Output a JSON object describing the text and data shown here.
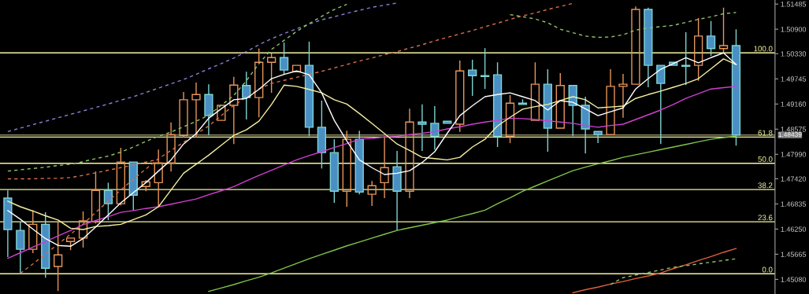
{
  "chart_data": {
    "type": "candlestick",
    "tick_labels": "y",
    "grid": false,
    "legend": false,
    "categories": [
      null,
      null,
      null,
      null,
      null,
      null,
      null,
      null,
      null,
      null,
      null,
      null,
      null,
      null,
      null,
      null,
      null,
      null,
      null,
      null,
      null,
      null,
      null,
      null,
      null,
      null,
      null,
      null,
      null,
      null,
      null,
      null,
      null,
      null,
      null,
      null,
      null,
      null,
      null,
      null,
      null,
      null,
      null,
      null,
      null,
      null,
      null,
      null,
      null,
      null,
      null,
      null,
      null,
      null,
      null,
      null,
      null,
      null,
      null
    ],
    "ylim": [
      1.4474,
      1.5158
    ],
    "yticks": [
      {
        "value": 1.51485,
        "label": "1.51485"
      },
      {
        "value": 1.509,
        "label": "1.50900"
      },
      {
        "value": 1.5033,
        "label": "1.50330"
      },
      {
        "value": 1.49745,
        "label": "1.49745"
      },
      {
        "value": 1.4916,
        "label": "1.49160"
      },
      {
        "value": 1.48575,
        "label": "1.48575"
      },
      {
        "value": 1.4799,
        "label": "1.47990"
      },
      {
        "value": 1.4742,
        "label": "1.47420"
      },
      {
        "value": 1.46835,
        "label": "1.46835"
      },
      {
        "value": 1.4625,
        "label": "1.46250"
      },
      {
        "value": 1.45665,
        "label": "1.45665"
      },
      {
        "value": 1.4508,
        "label": "1.45080"
      }
    ],
    "ref_lines": [
      {
        "axis": "y",
        "value": 1.48439,
        "label": "1.48439",
        "color": "#8a8a6a"
      },
      {
        "axis": "y",
        "value": 1.5035,
        "color": "#f5f5a0"
      },
      {
        "axis": "y",
        "value": 1.4839,
        "color": "#f5f5a0"
      },
      {
        "axis": "y",
        "value": 1.4778,
        "color": "#f5f5a0"
      },
      {
        "axis": "y",
        "value": 1.4717,
        "color": "#f5f5a0"
      },
      {
        "axis": "y",
        "value": 1.4642,
        "color": "#f5f5a0"
      },
      {
        "axis": "y",
        "value": 1.4521,
        "color": "#f5f5a0"
      }
    ],
    "annotations": [
      {
        "text": "100.0",
        "y": 1.5035
      },
      {
        "text": "61.8",
        "y": 1.4839
      },
      {
        "text": "50.0",
        "y": 1.4778
      },
      {
        "text": "38.2",
        "y": 1.4717
      },
      {
        "text": "23.6",
        "y": 1.4642
      },
      {
        "text": "0.0",
        "y": 1.4521
      }
    ],
    "colors": [
      "#4a8fc4",
      "#4a8fc4",
      "#e8955a",
      "#4a8fc4",
      "#e8955a",
      "#e8955a",
      "#e8955a",
      "#e8955a",
      "#4a8fc4",
      "#e8955a",
      "#4a8fc4",
      "#e8955a",
      "#e8955a",
      "#e8955a",
      "#e8955a",
      "#e8955a",
      "#4a8fc4",
      "#e8955a",
      "#e8955a",
      "#4a8fc4",
      "#e8955a",
      "#e8955a",
      "#4a8fc4",
      "#e8955a",
      "#4a8fc4",
      "#4a8fc4",
      "#4a8fc4",
      "#e8955a",
      "#4a8fc4",
      "#e8955a",
      "#e8955a",
      "#4a8fc4",
      "#e8955a",
      "#4a8fc4",
      "#4a8fc4",
      "#4a8fc4",
      "#e8955a",
      "#4a8fc4",
      "#4a8fc4",
      "#4a8fc4",
      "#e8955a",
      "#4a8fc4",
      "#e8955a",
      "#4a8fc4",
      "#e8955a",
      "#4a8fc4",
      "#4a8fc4",
      "#4a8fc4",
      "#e8955a",
      "#e8955a",
      "#e8955a",
      "#4a8fc4",
      "#4a8fc4",
      "#4a8fc4",
      "#4a8fc4",
      "#e8955a",
      "#4a8fc4",
      "#e8955a",
      "#4a8fc4"
    ],
    "ohlc": [
      [
        1.4697,
        1.4715,
        1.456,
        1.4624
      ],
      [
        1.4622,
        1.4642,
        1.4521,
        1.4578
      ],
      [
        1.4578,
        1.4669,
        1.4569,
        1.4636
      ],
      [
        1.4636,
        1.4664,
        1.4512,
        1.4534
      ],
      [
        1.4538,
        1.4642,
        1.4481,
        1.4565
      ],
      [
        1.4596,
        1.4604,
        1.4576,
        1.4604
      ],
      [
        1.4604,
        1.4666,
        1.4582,
        1.4644
      ],
      [
        1.4642,
        1.4759,
        1.4638,
        1.4715
      ],
      [
        1.4715,
        1.4733,
        1.4646,
        1.4684
      ],
      [
        1.4684,
        1.4814,
        1.468,
        1.4781
      ],
      [
        1.4781,
        1.4781,
        1.4668,
        1.4704
      ],
      [
        1.4724,
        1.4739,
        1.4713,
        1.4735
      ],
      [
        1.4733,
        1.481,
        1.4677,
        1.4779
      ],
      [
        1.4779,
        1.4873,
        1.4759,
        1.4845
      ],
      [
        1.4843,
        1.4944,
        1.4838,
        1.4926
      ],
      [
        1.4926,
        1.4966,
        1.4838,
        1.4938
      ],
      [
        1.4938,
        1.4962,
        1.4843,
        1.4889
      ],
      [
        1.4878,
        1.4913,
        1.4878,
        1.4913
      ],
      [
        1.4913,
        1.4979,
        1.4823,
        1.496
      ],
      [
        1.4959,
        1.4991,
        1.488,
        1.4931
      ],
      [
        1.4931,
        1.5045,
        1.4885,
        1.5013
      ],
      [
        1.5013,
        1.5034,
        1.4942,
        1.5024
      ],
      [
        1.5024,
        1.5059,
        1.4984,
        1.4995
      ],
      [
        1.4991,
        1.5006,
        1.4991,
        1.5006
      ],
      [
        1.5006,
        1.5061,
        1.4841,
        1.4862
      ],
      [
        1.4862,
        1.4924,
        1.4766,
        1.4803
      ],
      [
        1.4803,
        1.4834,
        1.4686,
        1.4713
      ],
      [
        1.4713,
        1.4854,
        1.4677,
        1.4834
      ],
      [
        1.4834,
        1.4854,
        1.4706,
        1.4711
      ],
      [
        1.4706,
        1.4737,
        1.4679,
        1.4726
      ],
      [
        1.4733,
        1.4841,
        1.4697,
        1.4768
      ],
      [
        1.477,
        1.4807,
        1.4622,
        1.4713
      ],
      [
        1.4713,
        1.4905,
        1.4697,
        1.4874
      ],
      [
        1.4874,
        1.4915,
        1.4807,
        1.4869
      ],
      [
        1.4871,
        1.4911,
        1.481,
        1.4841
      ],
      [
        1.4876,
        1.4876,
        1.4871,
        1.4871
      ],
      [
        1.4869,
        1.5017,
        1.4851,
        1.4993
      ],
      [
        1.4995,
        1.5019,
        1.4935,
        1.4982
      ],
      [
        1.4982,
        1.5046,
        1.4951,
        1.498
      ],
      [
        1.4984,
        1.5013,
        1.4816,
        1.4841
      ],
      [
        1.4841,
        1.4937,
        1.4825,
        1.4918
      ],
      [
        1.4918,
        1.4927,
        1.4915,
        1.4915
      ],
      [
        1.4878,
        1.5013,
        1.4878,
        1.4962
      ],
      [
        1.4962,
        1.4997,
        1.4805,
        1.486
      ],
      [
        1.486,
        1.4988,
        1.486,
        1.4959
      ],
      [
        1.4959,
        1.4959,
        1.4841,
        1.4913
      ],
      [
        1.4913,
        1.4933,
        1.4801,
        1.4858
      ],
      [
        1.4852,
        1.4852,
        1.4825,
        1.4845
      ],
      [
        1.4845,
        1.4997,
        1.4845,
        1.4957
      ],
      [
        1.4957,
        1.4986,
        1.4884,
        1.4962
      ],
      [
        1.4962,
        1.5143,
        1.4962,
        1.5136
      ],
      [
        1.5136,
        1.514,
        1.4955,
        1.5006
      ],
      [
        1.5006,
        1.5006,
        1.4823,
        1.4964
      ],
      [
        1.5013,
        1.5013,
        1.5006,
        1.5006
      ],
      [
        1.5006,
        1.5083,
        1.496,
        1.5004
      ],
      [
        1.5006,
        1.5116,
        1.497,
        1.5074
      ],
      [
        1.5074,
        1.5109,
        1.5028,
        1.5045
      ],
      [
        1.5045,
        1.514,
        1.5035,
        1.5052
      ],
      [
        1.5052,
        1.509,
        1.4819,
        1.48439
      ]
    ],
    "series": [
      {
        "type": "line",
        "color": "#8a7fd8",
        "line_style": "dashed",
        "values": [
          1.4852,
          1.486,
          1.4868,
          1.4876,
          1.4884,
          1.4892,
          1.49,
          1.4908,
          1.4916,
          1.4925,
          1.4933,
          1.4943,
          1.4953,
          1.4963,
          1.4973,
          1.4985,
          1.4998,
          1.501,
          1.5023,
          1.5038,
          1.5054,
          1.5068,
          1.508,
          1.5091,
          1.5102,
          1.5112,
          1.5119,
          1.5127,
          1.5134,
          1.5141,
          1.5146,
          1.5151,
          null,
          null,
          null,
          null,
          null,
          null,
          null,
          null,
          null,
          null,
          null,
          null,
          null,
          null,
          null,
          null,
          null,
          null,
          null,
          null,
          null,
          null,
          null,
          null,
          null,
          null,
          null
        ]
      },
      {
        "type": "line",
        "color": "#8fc46a",
        "line_style": "dashed",
        "values": [
          1.476,
          1.4763,
          1.4766,
          1.4769,
          1.4773,
          1.4776,
          1.4782,
          1.4789,
          1.4795,
          1.4804,
          1.4816,
          1.4829,
          1.4841,
          1.4851,
          1.4863,
          1.4876,
          1.489,
          1.4913,
          1.4936,
          1.497,
          1.501,
          1.5043,
          1.5064,
          1.5085,
          1.5103,
          1.512,
          1.5136,
          1.5148,
          null,
          null,
          null,
          null,
          null,
          null,
          null,
          null,
          null,
          null,
          null,
          null,
          1.5124,
          1.5119,
          1.5114,
          1.5105,
          1.509,
          1.5082,
          1.5074,
          1.5071,
          1.5072,
          1.5077,
          1.5088,
          1.5093,
          1.5096,
          1.5099,
          1.5106,
          1.5113,
          1.5119,
          1.5126,
          1.5129
        ]
      },
      {
        "type": "line",
        "color": "#d8704a",
        "line_style": "dashed",
        "values": [
          1.4742,
          1.4742,
          1.4742,
          1.4743,
          1.4743,
          1.4745,
          1.475,
          1.4756,
          1.4762,
          1.4768,
          1.4774,
          1.4781,
          1.4787,
          null,
          null,
          null,
          null,
          null,
          null,
          null,
          null,
          null,
          null,
          null,
          null,
          null,
          null,
          null,
          null,
          null,
          null,
          null,
          null,
          null,
          null,
          null,
          null,
          null,
          null,
          null,
          null,
          null,
          null,
          null,
          null,
          null,
          null,
          null,
          null,
          null,
          null,
          null,
          null,
          null,
          null,
          null,
          null,
          null,
          null
        ]
      },
      {
        "type": "line",
        "color": "#d8704a",
        "line_style": "dashed",
        "values": [
          null,
          1.4522,
          1.4544,
          1.4567,
          1.459,
          1.4613,
          1.4637,
          1.4664,
          1.469,
          1.4716,
          1.4741,
          1.4765,
          1.4789,
          1.4808,
          1.4827,
          1.4846,
          1.4865,
          1.4889,
          1.4913,
          1.4932,
          1.4951,
          1.4964,
          1.4971,
          1.4978,
          1.4985,
          1.4992,
          1.5,
          1.5008,
          1.5016,
          1.5023,
          1.5031,
          1.5038,
          1.5046,
          1.5054,
          1.5063,
          1.5071,
          1.5079,
          1.5087,
          1.5096,
          1.5104,
          1.5113,
          1.5121,
          1.5128,
          1.5136,
          1.5143,
          1.515,
          null,
          null,
          null,
          null,
          null,
          null,
          null,
          null,
          null,
          null,
          null,
          null,
          null
        ]
      },
      {
        "type": "line",
        "color": "#7fc44a",
        "line_style": "solid",
        "values": [
          null,
          null,
          null,
          null,
          null,
          null,
          null,
          null,
          null,
          null,
          null,
          null,
          null,
          null,
          null,
          null,
          1.448,
          1.4488,
          1.4496,
          1.4505,
          1.4513,
          1.4523,
          1.4534,
          1.4545,
          1.4556,
          1.4566,
          1.4576,
          1.4586,
          1.4595,
          1.4604,
          1.4613,
          1.4622,
          1.4628,
          1.4634,
          1.464,
          1.4646,
          1.4654,
          1.4661,
          1.4669,
          1.4684,
          1.4698,
          1.4713,
          1.4725,
          1.4737,
          1.4749,
          1.4761,
          1.4769,
          1.4777,
          1.4784,
          1.4792,
          1.4798,
          1.4804,
          1.481,
          1.4816,
          1.4822,
          1.4828,
          1.4834,
          1.4838,
          1.4841
        ]
      },
      {
        "type": "line",
        "color": "#e06040",
        "line_style": "solid",
        "values": [
          null,
          null,
          null,
          null,
          null,
          null,
          null,
          null,
          null,
          null,
          null,
          null,
          null,
          null,
          null,
          null,
          null,
          null,
          null,
          null,
          null,
          null,
          null,
          null,
          null,
          null,
          null,
          null,
          null,
          null,
          null,
          null,
          null,
          null,
          null,
          null,
          null,
          null,
          null,
          null,
          null,
          null,
          null,
          null,
          null,
          1.4477,
          1.4484,
          1.449,
          1.4497,
          1.4503,
          1.451,
          1.4516,
          1.4523,
          1.4533,
          1.4542,
          1.4552,
          1.4561,
          1.4571,
          1.458
        ]
      },
      {
        "type": "line",
        "color": "#8fc46a",
        "line_style": "dashed",
        "values": [
          null,
          null,
          null,
          null,
          null,
          null,
          null,
          null,
          null,
          null,
          null,
          null,
          null,
          null,
          null,
          null,
          null,
          null,
          null,
          null,
          null,
          null,
          null,
          null,
          null,
          null,
          null,
          null,
          null,
          null,
          null,
          null,
          null,
          null,
          null,
          null,
          null,
          null,
          null,
          null,
          null,
          null,
          null,
          null,
          null,
          null,
          null,
          null,
          1.4496,
          1.4512,
          1.4518,
          1.4524,
          1.453,
          1.4536,
          1.454,
          1.4544,
          1.4548,
          1.4552,
          1.4556
        ]
      },
      {
        "type": "line",
        "color": "#d040d0",
        "line_style": "solid",
        "values": [
          1.4557,
          1.457,
          1.4583,
          1.4596,
          1.4609,
          1.4622,
          1.4635,
          1.4645,
          1.4654,
          1.4664,
          1.4668,
          1.4673,
          1.4677,
          1.4683,
          1.4689,
          1.4695,
          1.4705,
          1.4714,
          1.4724,
          1.4737,
          1.475,
          1.4762,
          1.4774,
          1.4786,
          1.4796,
          1.4805,
          1.4815,
          1.4824,
          1.4834,
          1.4836,
          1.4839,
          1.4841,
          1.4845,
          1.4848,
          1.4852,
          1.4858,
          1.4863,
          1.4869,
          1.4874,
          1.4878,
          1.4883,
          1.4882,
          1.488,
          1.4877,
          1.4874,
          1.4871,
          1.4866,
          1.4862,
          1.4866,
          1.4869,
          1.488,
          1.4891,
          1.4902,
          1.4915,
          1.4929,
          1.494,
          1.4951,
          1.4954,
          1.4957
        ]
      },
      {
        "type": "line",
        "color": "#f5f0a0",
        "line_style": "solid",
        "values": [
          1.469,
          1.4677,
          1.4667,
          1.4656,
          1.4646,
          1.4627,
          1.4624,
          1.4631,
          1.4633,
          1.4636,
          1.4647,
          1.4658,
          1.4677,
          1.4716,
          1.4755,
          1.4776,
          1.4797,
          1.482,
          1.4843,
          1.4856,
          1.4876,
          1.4915,
          1.496,
          1.4957,
          1.495,
          1.4942,
          1.4926,
          1.4916,
          1.4894,
          1.4871,
          1.4847,
          1.4823,
          1.4808,
          1.4792,
          1.4789,
          1.4786,
          1.4792,
          1.4816,
          1.4834,
          1.4865,
          1.4885,
          1.4904,
          1.491,
          1.4915,
          1.4924,
          1.4933,
          1.4926,
          1.4907,
          1.4909,
          1.4911,
          1.4929,
          1.4938,
          1.4946,
          1.4955,
          1.4964,
          1.4975,
          1.4998,
          1.5021,
          1.5008
        ]
      },
      {
        "type": "line",
        "color": "#ffffff",
        "line_style": "solid",
        "values": [
          1.4668,
          1.4648,
          1.4625,
          1.4603,
          1.4587,
          1.4585,
          1.4603,
          1.463,
          1.4658,
          1.4686,
          1.471,
          1.4733,
          1.476,
          1.4786,
          1.4823,
          1.4847,
          1.4883,
          1.4905,
          1.4926,
          1.4929,
          1.495,
          1.4975,
          1.4985,
          1.4993,
          1.4984,
          1.4942,
          1.4878,
          1.483,
          1.4786,
          1.4768,
          1.4752,
          1.4755,
          1.4761,
          1.478,
          1.4805,
          1.4848,
          1.4889,
          1.4912,
          1.4933,
          1.4938,
          1.4942,
          1.4933,
          1.4924,
          1.4902,
          1.4924,
          1.492,
          1.4905,
          1.4889,
          1.4898,
          1.4907,
          1.4951,
          1.4975,
          1.4997,
          1.501,
          1.5024,
          1.5012,
          1.5024,
          1.5035,
          1.5008
        ]
      }
    ]
  }
}
